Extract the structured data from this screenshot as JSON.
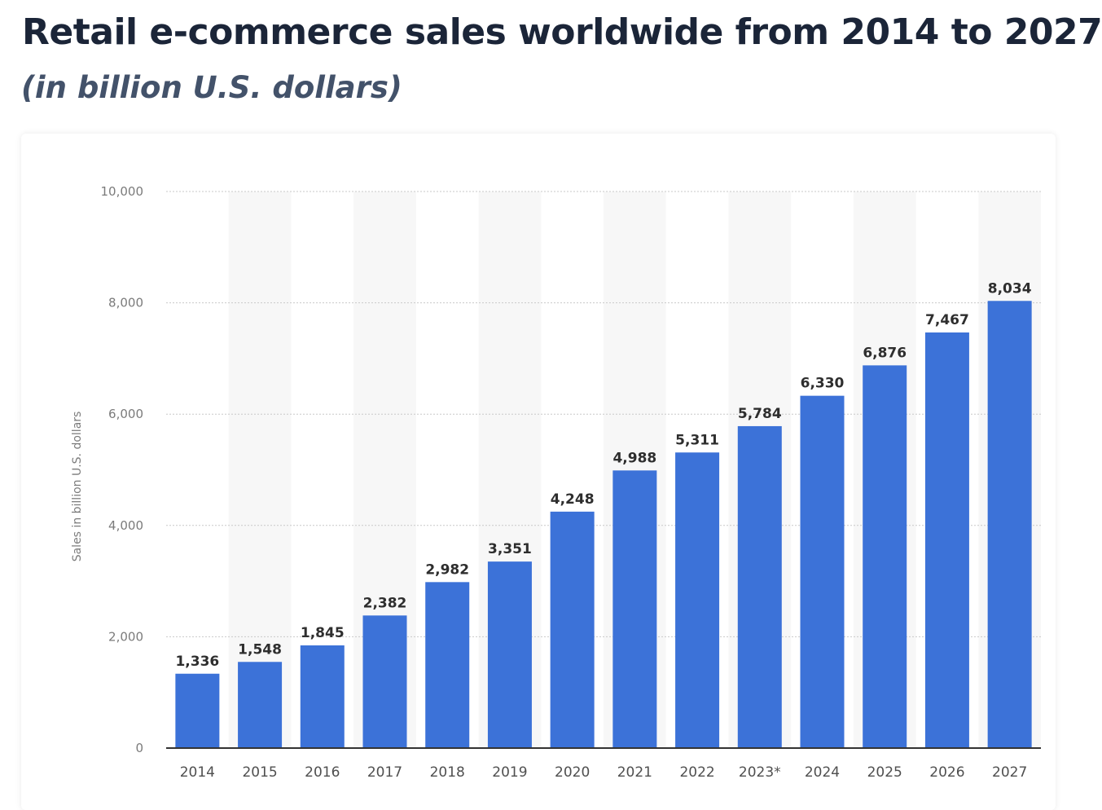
{
  "chart_data": {
    "type": "bar",
    "title": "Retail e-commerce sales worldwide from 2014 to 2027",
    "subtitle": "(in billion U.S. dollars)",
    "xlabel": "",
    "ylabel": "Sales in billion U.S. dollars",
    "categories": [
      "2014",
      "2015",
      "2016",
      "2017",
      "2018",
      "2019",
      "2020",
      "2021",
      "2022",
      "2023*",
      "2024",
      "2025",
      "2026",
      "2027"
    ],
    "values": [
      1336,
      1548,
      1845,
      2382,
      2982,
      3351,
      4248,
      4988,
      5311,
      5784,
      6330,
      6876,
      7467,
      8034
    ],
    "data_labels": [
      "1,336",
      "1,548",
      "1,845",
      "2,382",
      "2,982",
      "3,351",
      "4,248",
      "4,988",
      "5,311",
      "5,784",
      "6,330",
      "6,876",
      "7,467",
      "8,034"
    ],
    "ylim": [
      0,
      10000
    ],
    "yticks": [
      0,
      2000,
      4000,
      6000,
      8000,
      10000
    ],
    "ytick_labels": [
      "0",
      "2,000",
      "4,000",
      "6,000",
      "8,000",
      "10,000"
    ],
    "grid": true,
    "bar_color": "#3c72d8",
    "stripe_color": "#f7f7f7"
  }
}
